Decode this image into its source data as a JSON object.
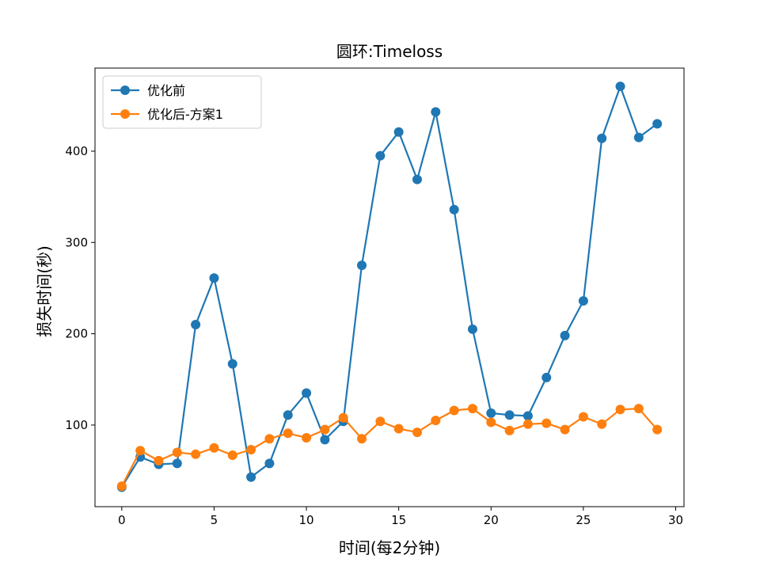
{
  "chart_data": {
    "type": "line",
    "title": "圆环:Timeloss",
    "xlabel": "时间(每2分钟)",
    "ylabel": "损失时间(秒)",
    "xlim": [
      -1.45,
      30.45
    ],
    "ylim": [
      10.6,
      491.0
    ],
    "x_ticks": [
      0,
      5,
      10,
      15,
      20,
      25,
      30
    ],
    "y_ticks": [
      100,
      200,
      300,
      400
    ],
    "grid": false,
    "legend_position": "top-left",
    "x": [
      0,
      1,
      2,
      3,
      4,
      5,
      6,
      7,
      8,
      9,
      10,
      11,
      12,
      13,
      14,
      15,
      16,
      17,
      18,
      19,
      20,
      21,
      22,
      23,
      24,
      25,
      26,
      27,
      28,
      29
    ],
    "series": [
      {
        "name": "优化前",
        "color": "#1f77b4",
        "marker": "circle",
        "values": [
          32,
          65,
          57,
          58,
          210,
          261,
          167,
          43,
          58,
          111,
          135,
          84,
          104,
          275,
          395,
          421,
          369,
          443,
          336,
          205,
          113,
          111,
          110,
          152,
          198,
          236,
          414,
          471,
          415,
          430
        ]
      },
      {
        "name": "优化后-方案1",
        "color": "#ff7f0e",
        "marker": "circle",
        "values": [
          33,
          72,
          61,
          70,
          68,
          75,
          67,
          73,
          85,
          91,
          86,
          95,
          108,
          85,
          104,
          96,
          92,
          105,
          116,
          118,
          103,
          94,
          101,
          102,
          95,
          109,
          101,
          117,
          118,
          95
        ]
      }
    ]
  }
}
